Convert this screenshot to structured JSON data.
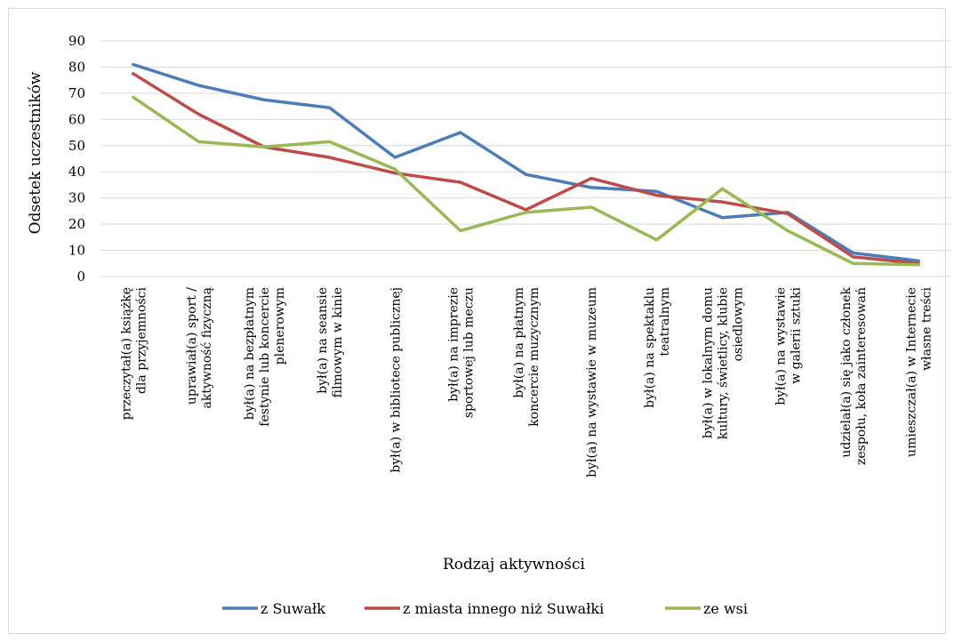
{
  "chart_data": {
    "type": "line",
    "ylabel": "Odsetek uczestników",
    "xlabel": "Rodzaj aktywności",
    "ylim": [
      0,
      90
    ],
    "yticks": [
      0,
      10,
      20,
      30,
      40,
      50,
      60,
      70,
      80,
      90
    ],
    "grid": true,
    "legend_position": "bottom",
    "categories": [
      [
        "przeczytał(a) książkę",
        "dla przyjemności"
      ],
      [
        "uprawiał(a) sport /",
        "aktywność fizyczną"
      ],
      [
        "był(a) na bezpłatnym",
        "festynie lub koncercie",
        "plenerowym"
      ],
      [
        "był(a) na seansie",
        "filmowym w kinie"
      ],
      [
        "był(a) w bibliotece publicznej"
      ],
      [
        "był(a) na imprezie",
        "sportowej lub meczu"
      ],
      [
        "był(a) na płatnym",
        "koncercie muzycznym"
      ],
      [
        "był(a) na wystawie w muzeum"
      ],
      [
        "był(a) na spektaklu",
        "teatralnym"
      ],
      [
        "był(a) w lokalnym domu",
        "kultury, świetlicy, klubie",
        "osiedlowym"
      ],
      [
        "był(a) na wystawie",
        "w galerii sztuki"
      ],
      [
        "udzielał(a) się jako członek",
        "zespołu, koła zainteresowań"
      ],
      [
        "umieszczał(a) w Internecie",
        "własne treści"
      ]
    ],
    "series": [
      {
        "name": "z Suwałk",
        "color": "#4a7ebb",
        "values": [
          81,
          73,
          67.5,
          64.5,
          45.5,
          55,
          39,
          34,
          32.5,
          22.5,
          24.5,
          9,
          6
        ]
      },
      {
        "name": "z miasta innego niż Suwałki",
        "color": "#be4b48",
        "values": [
          77.5,
          62,
          49.5,
          45.5,
          39.5,
          36,
          25.5,
          37.5,
          31,
          28.5,
          24,
          7.5,
          5
        ]
      },
      {
        "name": "ze wsi",
        "color": "#98b954",
        "values": [
          68.5,
          51.5,
          49.5,
          51.5,
          41,
          17.5,
          24.5,
          26.5,
          14,
          33.5,
          17.5,
          5,
          4.5
        ]
      }
    ]
  }
}
